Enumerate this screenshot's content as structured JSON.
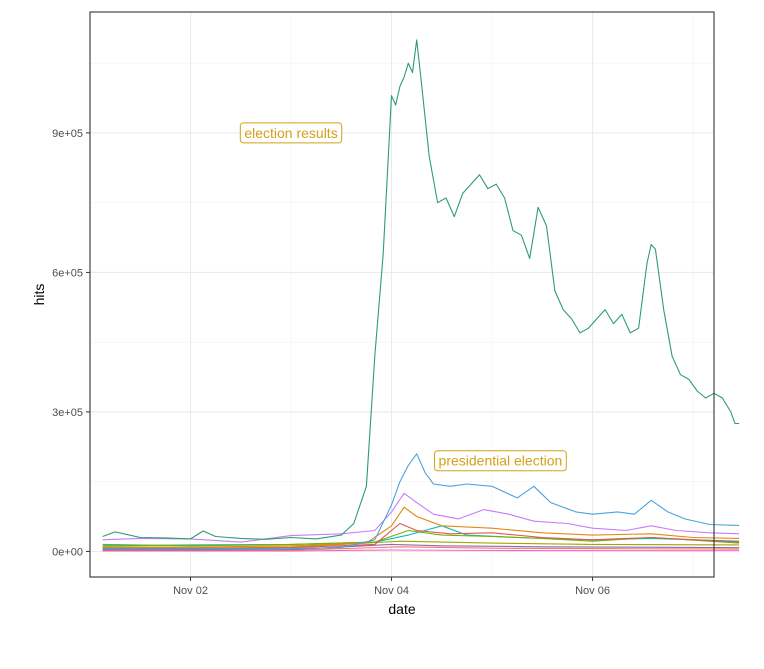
{
  "chart_data": {
    "type": "line",
    "title": "",
    "xlabel": "date",
    "ylabel": "hits",
    "x_ticks": [
      {
        "date": "2020-11-02",
        "label": "Nov 02"
      },
      {
        "date": "2020-11-04",
        "label": "Nov 04"
      },
      {
        "date": "2020-11-06",
        "label": "Nov 06"
      }
    ],
    "y_ticks": [
      {
        "value": 0,
        "label": "0e+00"
      },
      {
        "value": 300000,
        "label": "3e+05"
      },
      {
        "value": 600000,
        "label": "6e+05"
      },
      {
        "value": 900000,
        "label": "9e+05"
      }
    ],
    "xlim": [
      "2020-11-01T00:00",
      "2020-11-07T05:00"
    ],
    "ylim": [
      -55000,
      1160000
    ],
    "grid": true,
    "legend": "none",
    "annotations": [
      {
        "label": "election results",
        "date": "2020-11-03T00:00",
        "value": 900000,
        "color": "#D4A017"
      },
      {
        "label": "presidential election",
        "date": "2020-11-05T02:00",
        "value": 195000,
        "color": "#D4A017"
      }
    ],
    "series": [
      {
        "color": "#2E9D6E",
        "points": [
          [
            "2020-11-01T03:00",
            32000
          ],
          [
            "2020-11-01T06:00",
            42000
          ],
          [
            "2020-11-01T09:00",
            36000
          ],
          [
            "2020-11-01T12:00",
            30000
          ],
          [
            "2020-11-01T18:00",
            29000
          ],
          [
            "2020-11-02T00:00",
            27000
          ],
          [
            "2020-11-02T03:00",
            44000
          ],
          [
            "2020-11-02T06:00",
            32000
          ],
          [
            "2020-11-02T12:00",
            28000
          ],
          [
            "2020-11-02T18:00",
            26000
          ],
          [
            "2020-11-03T00:00",
            30000
          ],
          [
            "2020-11-03T06:00",
            27000
          ],
          [
            "2020-11-03T12:00",
            35000
          ],
          [
            "2020-11-03T15:00",
            60000
          ],
          [
            "2020-11-03T18:00",
            140000
          ],
          [
            "2020-11-03T20:00",
            420000
          ],
          [
            "2020-11-03T22:00",
            640000
          ],
          [
            "2020-11-04T00:00",
            980000
          ],
          [
            "2020-11-04T01:00",
            960000
          ],
          [
            "2020-11-04T02:00",
            1000000
          ],
          [
            "2020-11-04T03:00",
            1020000
          ],
          [
            "2020-11-04T04:00",
            1050000
          ],
          [
            "2020-11-04T05:00",
            1030000
          ],
          [
            "2020-11-04T06:00",
            1100000
          ],
          [
            "2020-11-04T07:00",
            1020000
          ],
          [
            "2020-11-04T09:00",
            850000
          ],
          [
            "2020-11-04T11:00",
            750000
          ],
          [
            "2020-11-04T13:00",
            760000
          ],
          [
            "2020-11-04T15:00",
            720000
          ],
          [
            "2020-11-04T17:00",
            770000
          ],
          [
            "2020-11-04T19:00",
            790000
          ],
          [
            "2020-11-04T21:00",
            810000
          ],
          [
            "2020-11-04T23:00",
            780000
          ],
          [
            "2020-11-05T01:00",
            790000
          ],
          [
            "2020-11-05T03:00",
            760000
          ],
          [
            "2020-11-05T05:00",
            690000
          ],
          [
            "2020-11-05T07:00",
            680000
          ],
          [
            "2020-11-05T09:00",
            630000
          ],
          [
            "2020-11-05T11:00",
            740000
          ],
          [
            "2020-11-05T13:00",
            700000
          ],
          [
            "2020-11-05T15:00",
            560000
          ],
          [
            "2020-11-05T17:00",
            520000
          ],
          [
            "2020-11-05T19:00",
            500000
          ],
          [
            "2020-11-05T21:00",
            470000
          ],
          [
            "2020-11-05T23:00",
            480000
          ],
          [
            "2020-11-06T01:00",
            500000
          ],
          [
            "2020-11-06T03:00",
            520000
          ],
          [
            "2020-11-06T05:00",
            490000
          ],
          [
            "2020-11-06T07:00",
            510000
          ],
          [
            "2020-11-06T09:00",
            470000
          ],
          [
            "2020-11-06T11:00",
            480000
          ],
          [
            "2020-11-06T13:00",
            620000
          ],
          [
            "2020-11-06T14:00",
            660000
          ],
          [
            "2020-11-06T15:00",
            650000
          ],
          [
            "2020-11-06T17:00",
            520000
          ],
          [
            "2020-11-06T19:00",
            420000
          ],
          [
            "2020-11-06T21:00",
            380000
          ],
          [
            "2020-11-06T23:00",
            370000
          ],
          [
            "2020-11-07T01:00",
            345000
          ],
          [
            "2020-11-07T03:00",
            330000
          ],
          [
            "2020-11-07T05:00",
            340000
          ],
          [
            "2020-11-07T07:00",
            330000
          ],
          [
            "2020-11-07T09:00",
            300000
          ],
          [
            "2020-11-07T10:00",
            275000
          ],
          [
            "2020-11-07T11:00",
            275000
          ]
        ]
      },
      {
        "color": "#4AA3DF",
        "points": [
          [
            "2020-11-01T03:00",
            5000
          ],
          [
            "2020-11-02T00:00",
            5000
          ],
          [
            "2020-11-03T00:00",
            6000
          ],
          [
            "2020-11-03T12:00",
            8000
          ],
          [
            "2020-11-03T20:00",
            25000
          ],
          [
            "2020-11-04T00:00",
            100000
          ],
          [
            "2020-11-04T02:00",
            150000
          ],
          [
            "2020-11-04T04:00",
            185000
          ],
          [
            "2020-11-04T06:00",
            210000
          ],
          [
            "2020-11-04T08:00",
            170000
          ],
          [
            "2020-11-04T10:00",
            145000
          ],
          [
            "2020-11-04T14:00",
            140000
          ],
          [
            "2020-11-04T18:00",
            145000
          ],
          [
            "2020-11-05T00:00",
            140000
          ],
          [
            "2020-11-05T06:00",
            115000
          ],
          [
            "2020-11-05T10:00",
            140000
          ],
          [
            "2020-11-05T14:00",
            105000
          ],
          [
            "2020-11-05T20:00",
            85000
          ],
          [
            "2020-11-06T00:00",
            80000
          ],
          [
            "2020-11-06T06:00",
            85000
          ],
          [
            "2020-11-06T10:00",
            80000
          ],
          [
            "2020-11-06T14:00",
            110000
          ],
          [
            "2020-11-06T18:00",
            85000
          ],
          [
            "2020-11-06T22:00",
            70000
          ],
          [
            "2020-11-07T04:00",
            58000
          ],
          [
            "2020-11-07T11:00",
            56000
          ]
        ]
      },
      {
        "color": "#C77CFF",
        "points": [
          [
            "2020-11-01T03:00",
            25000
          ],
          [
            "2020-11-01T12:00",
            28000
          ],
          [
            "2020-11-02T00:00",
            27000
          ],
          [
            "2020-11-02T12:00",
            20000
          ],
          [
            "2020-11-03T00:00",
            34000
          ],
          [
            "2020-11-03T12:00",
            38000
          ],
          [
            "2020-11-03T20:00",
            45000
          ],
          [
            "2020-11-04T00:00",
            85000
          ],
          [
            "2020-11-04T03:00",
            125000
          ],
          [
            "2020-11-04T06:00",
            105000
          ],
          [
            "2020-11-04T10:00",
            80000
          ],
          [
            "2020-11-04T16:00",
            70000
          ],
          [
            "2020-11-04T22:00",
            90000
          ],
          [
            "2020-11-05T04:00",
            80000
          ],
          [
            "2020-11-05T10:00",
            65000
          ],
          [
            "2020-11-05T18:00",
            60000
          ],
          [
            "2020-11-06T00:00",
            50000
          ],
          [
            "2020-11-06T08:00",
            45000
          ],
          [
            "2020-11-06T14:00",
            55000
          ],
          [
            "2020-11-06T20:00",
            45000
          ],
          [
            "2020-11-07T04:00",
            40000
          ],
          [
            "2020-11-07T11:00",
            38000
          ]
        ]
      },
      {
        "color": "#E68613",
        "points": [
          [
            "2020-11-01T03:00",
            10000
          ],
          [
            "2020-11-02T00:00",
            9000
          ],
          [
            "2020-11-03T00:00",
            12000
          ],
          [
            "2020-11-03T18:00",
            18000
          ],
          [
            "2020-11-04T00:00",
            55000
          ],
          [
            "2020-11-04T03:00",
            95000
          ],
          [
            "2020-11-04T06:00",
            75000
          ],
          [
            "2020-11-04T12:00",
            55000
          ],
          [
            "2020-11-05T00:00",
            50000
          ],
          [
            "2020-11-05T12:00",
            40000
          ],
          [
            "2020-11-06T00:00",
            35000
          ],
          [
            "2020-11-06T14:00",
            38000
          ],
          [
            "2020-11-07T00:00",
            30000
          ],
          [
            "2020-11-07T11:00",
            28000
          ]
        ]
      },
      {
        "color": "#E15759",
        "points": [
          [
            "2020-11-01T03:00",
            6000
          ],
          [
            "2020-11-02T00:00",
            6000
          ],
          [
            "2020-11-03T00:00",
            8000
          ],
          [
            "2020-11-03T20:00",
            15000
          ],
          [
            "2020-11-04T02:00",
            60000
          ],
          [
            "2020-11-04T06:00",
            45000
          ],
          [
            "2020-11-04T14:00",
            38000
          ],
          [
            "2020-11-05T00:00",
            40000
          ],
          [
            "2020-11-05T12:00",
            30000
          ],
          [
            "2020-11-06T00:00",
            25000
          ],
          [
            "2020-11-06T14:00",
            30000
          ],
          [
            "2020-11-07T11:00",
            20000
          ]
        ]
      },
      {
        "color": "#7CAE00",
        "points": [
          [
            "2020-11-01T03:00",
            15000
          ],
          [
            "2020-11-02T00:00",
            12000
          ],
          [
            "2020-11-03T00:00",
            15000
          ],
          [
            "2020-11-03T20:00",
            20000
          ],
          [
            "2020-11-04T04:00",
            45000
          ],
          [
            "2020-11-04T12:00",
            35000
          ],
          [
            "2020-11-05T00:00",
            32000
          ],
          [
            "2020-11-05T12:00",
            28000
          ],
          [
            "2020-11-06T00:00",
            22000
          ],
          [
            "2020-11-06T14:00",
            30000
          ],
          [
            "2020-11-07T11:00",
            18000
          ]
        ]
      },
      {
        "color": "#00BFC4",
        "points": [
          [
            "2020-11-01T03:00",
            12000
          ],
          [
            "2020-11-02T00:00",
            14000
          ],
          [
            "2020-11-03T00:00",
            15000
          ],
          [
            "2020-11-03T20:00",
            20000
          ],
          [
            "2020-11-04T04:00",
            35000
          ],
          [
            "2020-11-04T12:00",
            55000
          ],
          [
            "2020-11-04T18:00",
            35000
          ],
          [
            "2020-11-05T06:00",
            30000
          ],
          [
            "2020-11-06T00:00",
            25000
          ],
          [
            "2020-11-06T14:00",
            28000
          ],
          [
            "2020-11-07T11:00",
            22000
          ]
        ]
      },
      {
        "color": "#8C6BB1",
        "points": [
          [
            "2020-11-01T03:00",
            3000
          ],
          [
            "2020-11-02T00:00",
            3000
          ],
          [
            "2020-11-03T00:00",
            4000
          ],
          [
            "2020-11-04T00:00",
            15000
          ],
          [
            "2020-11-04T12:00",
            12000
          ],
          [
            "2020-11-05T12:00",
            10000
          ],
          [
            "2020-11-06T12:00",
            9000
          ],
          [
            "2020-11-07T11:00",
            8000
          ]
        ]
      },
      {
        "color": "#F8766D",
        "points": [
          [
            "2020-11-01T03:00",
            2000
          ],
          [
            "2020-11-03T00:00",
            2500
          ],
          [
            "2020-11-04T02:00",
            10000
          ],
          [
            "2020-11-05T00:00",
            7000
          ],
          [
            "2020-11-06T00:00",
            6000
          ],
          [
            "2020-11-07T11:00",
            5000
          ]
        ]
      },
      {
        "color": "#FF61C3",
        "points": [
          [
            "2020-11-01T03:00",
            1000
          ],
          [
            "2020-11-03T00:00",
            1000
          ],
          [
            "2020-11-04T00:00",
            3000
          ],
          [
            "2020-11-05T00:00",
            2000
          ],
          [
            "2020-11-07T11:00",
            1500
          ]
        ]
      },
      {
        "color": "#A3A500",
        "points": [
          [
            "2020-11-01T03:00",
            8000
          ],
          [
            "2020-11-02T00:00",
            7000
          ],
          [
            "2020-11-03T00:00",
            9000
          ],
          [
            "2020-11-04T02:00",
            22000
          ],
          [
            "2020-11-05T00:00",
            18000
          ],
          [
            "2020-11-06T00:00",
            15000
          ],
          [
            "2020-11-07T11:00",
            14000
          ]
        ]
      }
    ]
  }
}
